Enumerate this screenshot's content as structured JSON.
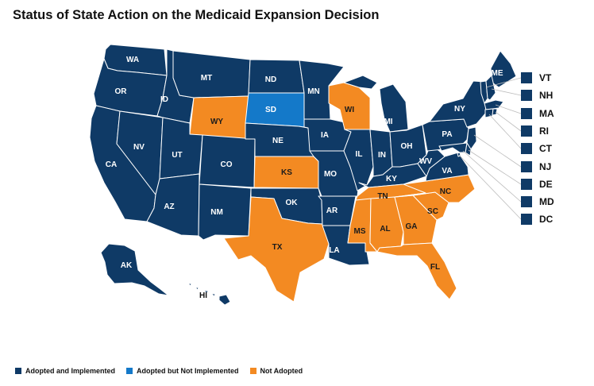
{
  "title": "Status of State Action on the Medicaid Expansion Decision",
  "colors": {
    "adopted": "#0f3a66",
    "adopted_not_implemented": "#1479c9",
    "not_adopted": "#f38a22",
    "border": "#ffffff"
  },
  "states_on_map": [
    {
      "code": "WA",
      "status": "adopted"
    },
    {
      "code": "OR",
      "status": "adopted"
    },
    {
      "code": "CA",
      "status": "adopted"
    },
    {
      "code": "NV",
      "status": "adopted"
    },
    {
      "code": "ID",
      "status": "adopted"
    },
    {
      "code": "MT",
      "status": "adopted"
    },
    {
      "code": "WY",
      "status": "not_adopted"
    },
    {
      "code": "UT",
      "status": "adopted"
    },
    {
      "code": "AZ",
      "status": "adopted"
    },
    {
      "code": "CO",
      "status": "adopted"
    },
    {
      "code": "NM",
      "status": "adopted"
    },
    {
      "code": "ND",
      "status": "adopted"
    },
    {
      "code": "SD",
      "status": "adopted_not_implemented"
    },
    {
      "code": "NE",
      "status": "adopted"
    },
    {
      "code": "KS",
      "status": "not_adopted"
    },
    {
      "code": "OK",
      "status": "adopted"
    },
    {
      "code": "TX",
      "status": "not_adopted"
    },
    {
      "code": "MN",
      "status": "adopted"
    },
    {
      "code": "IA",
      "status": "adopted"
    },
    {
      "code": "MO",
      "status": "adopted"
    },
    {
      "code": "AR",
      "status": "adopted"
    },
    {
      "code": "LA",
      "status": "adopted"
    },
    {
      "code": "WI",
      "status": "not_adopted"
    },
    {
      "code": "IL",
      "status": "adopted"
    },
    {
      "code": "MI",
      "status": "adopted"
    },
    {
      "code": "IN",
      "status": "adopted"
    },
    {
      "code": "OH",
      "status": "adopted"
    },
    {
      "code": "KY",
      "status": "adopted"
    },
    {
      "code": "TN",
      "status": "not_adopted"
    },
    {
      "code": "MS",
      "status": "not_adopted"
    },
    {
      "code": "AL",
      "status": "not_adopted"
    },
    {
      "code": "GA",
      "status": "not_adopted"
    },
    {
      "code": "FL",
      "status": "not_adopted"
    },
    {
      "code": "SC",
      "status": "not_adopted"
    },
    {
      "code": "NC",
      "status": "not_adopted"
    },
    {
      "code": "VA",
      "status": "adopted"
    },
    {
      "code": "WV",
      "status": "adopted"
    },
    {
      "code": "PA",
      "status": "adopted"
    },
    {
      "code": "NY",
      "status": "adopted"
    },
    {
      "code": "ME",
      "status": "adopted"
    },
    {
      "code": "AK",
      "status": "adopted"
    },
    {
      "code": "HI",
      "status": "adopted"
    }
  ],
  "small_states": [
    {
      "code": "VT",
      "status": "adopted"
    },
    {
      "code": "NH",
      "status": "adopted"
    },
    {
      "code": "MA",
      "status": "adopted"
    },
    {
      "code": "RI",
      "status": "adopted"
    },
    {
      "code": "CT",
      "status": "adopted"
    },
    {
      "code": "NJ",
      "status": "adopted"
    },
    {
      "code": "DE",
      "status": "adopted"
    },
    {
      "code": "MD",
      "status": "adopted"
    },
    {
      "code": "DC",
      "status": "adopted"
    }
  ],
  "legend": [
    {
      "label": "Adopted and Implemented",
      "color": "#0f3a66"
    },
    {
      "label": "Adopted but Not Implemented",
      "color": "#1479c9"
    },
    {
      "label": "Not Adopted",
      "color": "#f38a22"
    }
  ]
}
